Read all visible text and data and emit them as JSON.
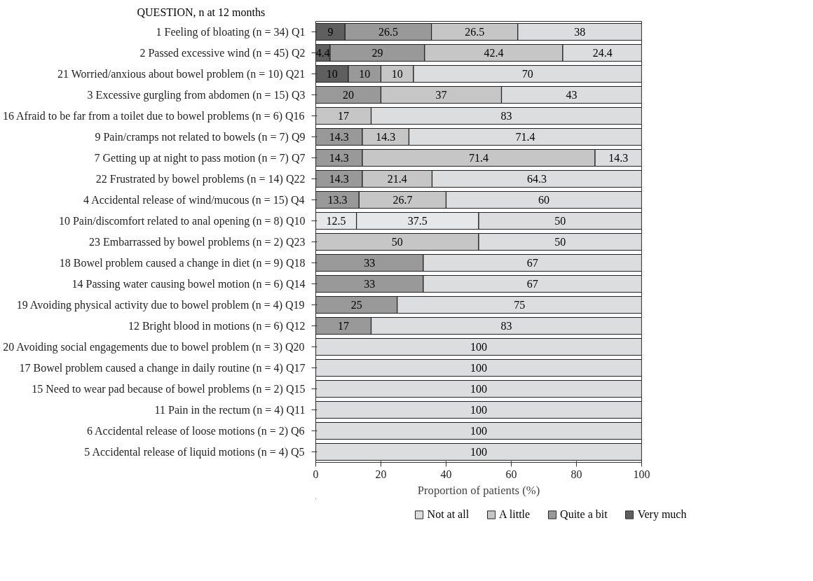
{
  "chart_data": {
    "type": "bar",
    "orientation": "horizontal",
    "stacked": true,
    "ylabel": "QUESTION, n at 12 months",
    "xlabel": "Proportion of patients (%)",
    "categories": [
      "1 Feeling of bloating (n = 34)  Q1",
      "2 Passed excessive wind (n = 45)  Q2",
      "21 Worried/anxious about bowel problem (n = 10)  Q21",
      "3 Excessive gurgling from abdomen (n = 15)  Q3",
      "16 Afraid to be far from a toilet due to bowel problems (n = 6)  Q16",
      "9 Pain/cramps not related to bowels (n = 7)  Q9",
      "7 Getting up at night to pass motion (n = 7)  Q7",
      "22 Frustrated by bowel problems (n = 14)  Q22",
      "4 Accidental release of wind/mucous (n = 15)  Q4",
      "10 Pain/discomfort related to anal opening (n = 8)  Q10",
      "23 Embarrassed by bowel problems (n = 2)  Q23",
      "18 Bowel problem caused a change in diet (n = 9)  Q18",
      "14 Passing water causing bowel motion (n = 6)  Q14",
      "19 Avoiding physical activity due to bowel problem (n = 4)  Q19",
      "12 Bright blood in motions (n = 6)  Q12",
      "20 Avoiding social engagements due to bowel problem (n = 3)  Q20",
      "17 Bowel problem caused a change in daily routine (n = 4)  Q17",
      "15 Need to wear pad because of bowel problems (n = 2)  Q15",
      "11 Pain in the rectum (n = 4)  Q11",
      "6 Accidental release of loose motions (n = 2)  Q6",
      "5 Accidental release of liquid motions (n = 4)  Q5"
    ],
    "series": [
      {
        "name": "Very much",
        "color": "#5f5f5f",
        "values": [
          9,
          4.4,
          10,
          null,
          null,
          null,
          null,
          null,
          null,
          null,
          null,
          null,
          null,
          null,
          null,
          null,
          null,
          null,
          null,
          null,
          null
        ],
        "value_labels": [
          "9",
          "4.4",
          "10",
          null,
          null,
          null,
          null,
          null,
          null,
          null,
          null,
          null,
          null,
          null,
          null,
          null,
          null,
          null,
          null,
          null,
          null
        ]
      },
      {
        "name": "Quite a bit",
        "color": "#999999",
        "colors": [
          null,
          null,
          null,
          null,
          null,
          null,
          null,
          null,
          null,
          "#e6e7e9",
          null,
          null,
          null,
          null,
          null,
          null,
          null,
          null,
          null,
          null,
          null
        ],
        "values": [
          26.5,
          29,
          10,
          20,
          null,
          14.3,
          14.3,
          14.3,
          13.3,
          12.5,
          null,
          33,
          33,
          25,
          17,
          null,
          null,
          null,
          null,
          null,
          null
        ],
        "value_labels": [
          "26.5",
          "29",
          "10",
          "20",
          null,
          "14.3",
          "14.3",
          "14.3",
          "13.3",
          "12.5",
          null,
          "33",
          "33",
          "25",
          "17",
          null,
          null,
          null,
          null,
          null,
          null
        ]
      },
      {
        "name": "A little",
        "color": "#c6c6c6",
        "colors": [
          null,
          null,
          null,
          null,
          null,
          null,
          null,
          null,
          null,
          "#e6e7e9",
          null,
          null,
          null,
          null,
          null,
          null,
          null,
          null,
          null,
          null,
          null
        ],
        "values": [
          26.5,
          42.4,
          10,
          37,
          17,
          14.3,
          71.4,
          21.4,
          26.7,
          37.5,
          50,
          null,
          null,
          null,
          null,
          null,
          null,
          null,
          null,
          null,
          null
        ],
        "value_labels": [
          "26.5",
          "42.4",
          "10",
          "37",
          "17",
          "14.3",
          "71.4",
          "21.4",
          "26.7",
          "37.5",
          "50",
          null,
          null,
          null,
          null,
          null,
          null,
          null,
          null,
          null,
          null
        ]
      },
      {
        "name": "Not at all",
        "color": "#dcdddf",
        "values": [
          38,
          24.4,
          70,
          43,
          83,
          71.4,
          14.3,
          64.3,
          60,
          50,
          50,
          67,
          67,
          75,
          83,
          100,
          100,
          100,
          100,
          100,
          100
        ],
        "value_labels": [
          "38",
          "24.4",
          "70",
          "43",
          "83",
          "71.4",
          "14.3",
          "64.3",
          "60",
          "50",
          "50",
          "67",
          "67",
          "75",
          "83",
          "100",
          "100",
          "100",
          "100",
          "100",
          "100"
        ]
      }
    ],
    "xlim": [
      0,
      100
    ],
    "xticks": [
      0,
      20,
      40,
      60,
      80,
      100
    ],
    "grid": false,
    "legend": "bottom"
  }
}
